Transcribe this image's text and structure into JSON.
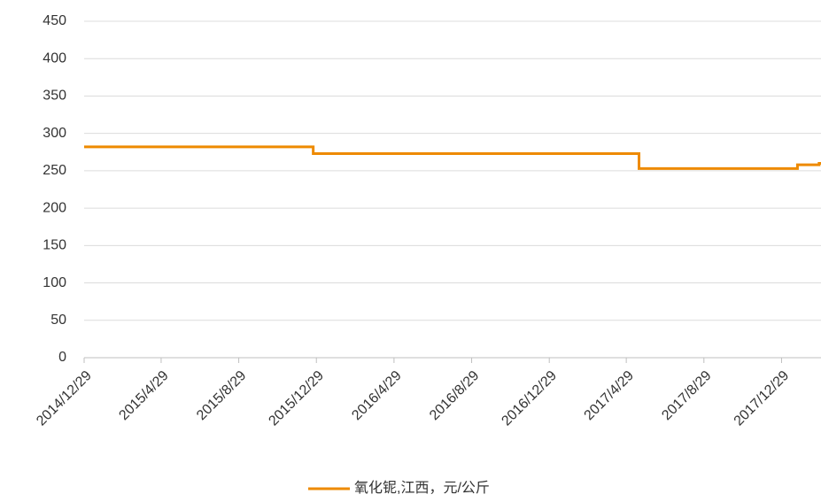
{
  "chart_data": {
    "type": "line",
    "x": [
      "2014/12/29",
      "2015/12/24",
      "2015/12/24",
      "2017/5/19",
      "2017/5/19",
      "2018/1/23",
      "2018/1/23",
      "2018/2/26",
      "2018/2/26",
      "2018/3/1"
    ],
    "series": [
      {
        "name": "氧化铌,江西，元/公斤",
        "color": "#ee8a00",
        "values": [
          282,
          282,
          273,
          273,
          253,
          253,
          258,
          258,
          260,
          260
        ]
      }
    ],
    "xlim": [
      "2014/12/29",
      "2018/3/1"
    ],
    "xticks": [
      "2014/12/29",
      "2015/4/29",
      "2015/8/29",
      "2015/12/29",
      "2016/4/29",
      "2016/8/29",
      "2016/12/29",
      "2017/4/29",
      "2017/8/29",
      "2017/12/29"
    ],
    "ylim": [
      0,
      450
    ],
    "yticks": [
      0,
      50,
      100,
      150,
      200,
      250,
      300,
      350,
      400,
      450
    ],
    "grid": true,
    "legend": "bottom"
  }
}
